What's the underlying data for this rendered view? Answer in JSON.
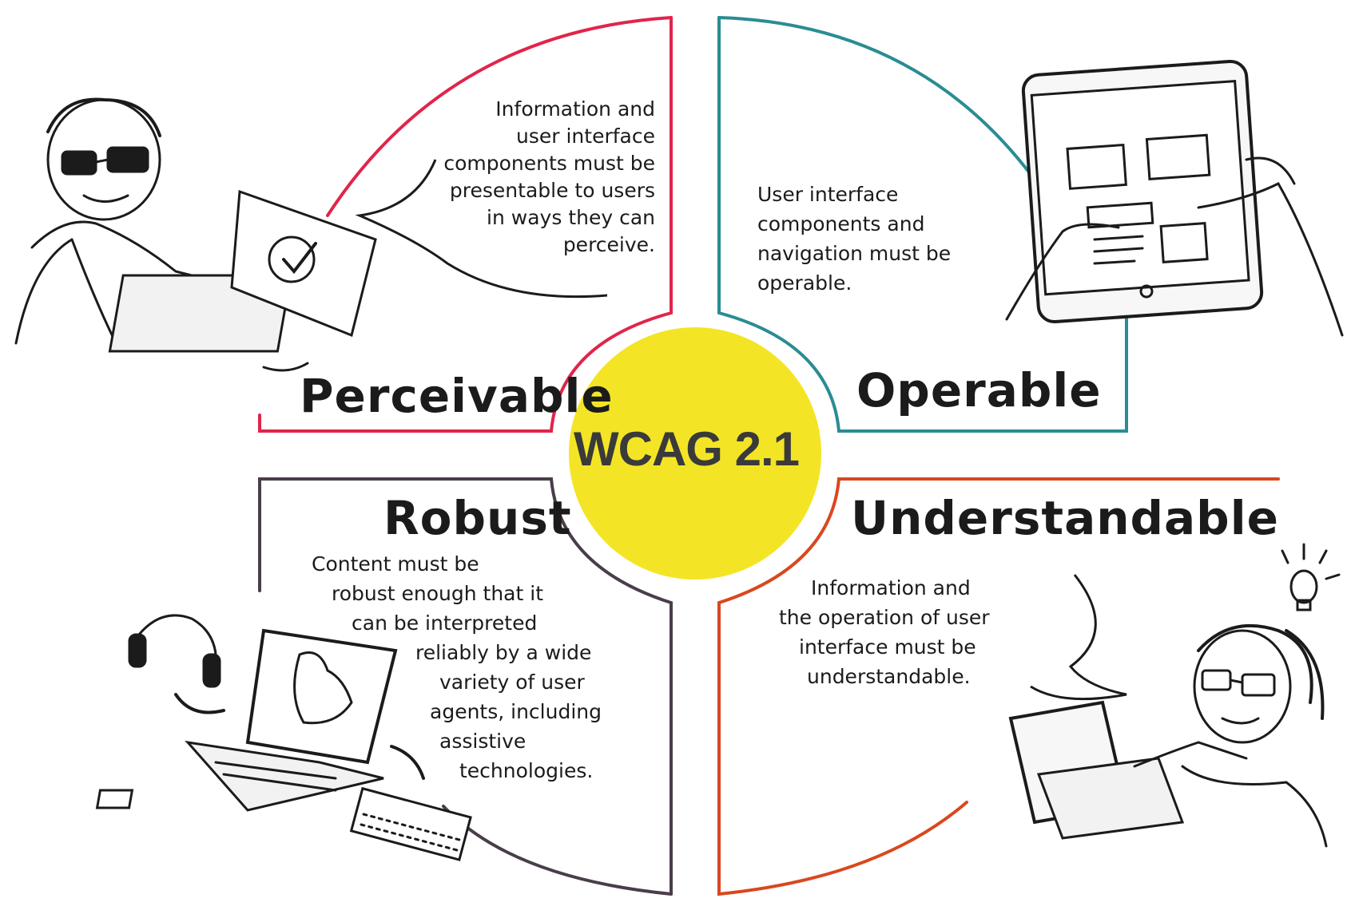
{
  "center": {
    "title": "WCAG 2.1",
    "color": "#f3e525"
  },
  "quadrants": {
    "perceivable": {
      "title": "Perceivable",
      "color": "#e0254a",
      "lines": [
        "Information and",
        "user interface",
        "components must be",
        "presentable to users",
        "in ways they can",
        "perceive."
      ]
    },
    "operable": {
      "title": "Operable",
      "color": "#2a8c94",
      "lines": [
        "User interface",
        "components and",
        "navigation must be",
        "operable."
      ]
    },
    "robust": {
      "title": "Robust",
      "color": "#4a3d4a",
      "lines": [
        "Content must be",
        "robust enough that it",
        "can be interpreted",
        "reliably by a wide",
        "variety of user",
        "agents, including",
        "assistive",
        "technologies."
      ]
    },
    "understandable": {
      "title": "Understandable",
      "color": "#d8481e",
      "lines": [
        "Information and",
        "the operation of user",
        "interface must be",
        "understandable."
      ]
    }
  },
  "illustrations": {
    "perceivable": "person-with-sunglasses-at-laptop-illustration",
    "operable": "hands-holding-tablet-illustration",
    "robust": "laptop-headphones-keyboard-illustration",
    "understandable": "person-with-lightbulb-at-laptop-illustration"
  }
}
